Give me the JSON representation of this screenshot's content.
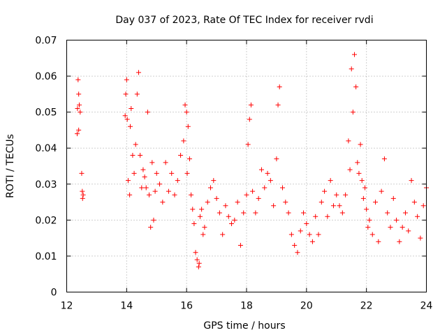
{
  "chart_data": {
    "type": "scatter",
    "title": "Day 037 of 2023, Rate Of TEC Index for receiver rvdi",
    "xlabel": "GPS time / hours",
    "ylabel": "ROTI / TECUs",
    "xlim": [
      12,
      24
    ],
    "ylim": [
      0,
      0.07
    ],
    "xticks": [
      "12",
      "14",
      "16",
      "18",
      "20",
      "22",
      "24"
    ],
    "yticks": [
      "0",
      "0.01",
      "0.02",
      "0.03",
      "0.04",
      "0.05",
      "0.06",
      "0.07"
    ],
    "grid": true,
    "marker": "+",
    "color": "#ff0000",
    "series": [
      {
        "name": "ROTI",
        "x": [
          12.35,
          12.36,
          12.38,
          12.4,
          12.4,
          12.42,
          12.45,
          12.5,
          12.52,
          12.53,
          12.55,
          13.95,
          13.97,
          14.0,
          14.02,
          14.05,
          14.1,
          14.12,
          14.15,
          14.2,
          14.25,
          14.3,
          14.35,
          14.4,
          14.45,
          14.5,
          14.55,
          14.6,
          14.65,
          14.7,
          14.75,
          14.8,
          14.85,
          14.9,
          14.95,
          15.0,
          15.1,
          15.2,
          15.3,
          15.4,
          15.5,
          15.6,
          15.7,
          15.8,
          15.9,
          15.95,
          16.0,
          16.02,
          16.05,
          16.1,
          16.15,
          16.2,
          16.25,
          16.3,
          16.35,
          16.4,
          16.42,
          16.45,
          16.5,
          16.55,
          16.6,
          16.7,
          16.8,
          16.9,
          17.0,
          17.1,
          17.2,
          17.3,
          17.4,
          17.5,
          17.6,
          17.7,
          17.8,
          17.9,
          18.0,
          18.05,
          18.1,
          18.15,
          18.2,
          18.3,
          18.4,
          18.5,
          18.6,
          18.7,
          18.8,
          18.9,
          19.0,
          19.05,
          19.1,
          19.2,
          19.3,
          19.4,
          19.5,
          19.6,
          19.7,
          19.8,
          19.9,
          20.0,
          20.1,
          20.2,
          20.3,
          20.4,
          20.5,
          20.6,
          20.7,
          20.8,
          20.9,
          21.0,
          21.1,
          21.2,
          21.3,
          21.4,
          21.45,
          21.5,
          21.55,
          21.6,
          21.65,
          21.7,
          21.75,
          21.8,
          21.85,
          21.9,
          21.95,
          22.0,
          22.05,
          22.1,
          22.2,
          22.3,
          22.4,
          22.5,
          22.6,
          22.7,
          22.8,
          22.9,
          23.0,
          23.1,
          23.2,
          23.3,
          23.4,
          23.5,
          23.6,
          23.7,
          23.8,
          23.9,
          24.0
        ],
        "y": [
          0.044,
          0.051,
          0.059,
          0.055,
          0.045,
          0.052,
          0.05,
          0.033,
          0.028,
          0.026,
          0.027,
          0.049,
          0.055,
          0.059,
          0.048,
          0.031,
          0.027,
          0.046,
          0.051,
          0.038,
          0.033,
          0.041,
          0.055,
          0.061,
          0.038,
          0.029,
          0.034,
          0.032,
          0.029,
          0.05,
          0.027,
          0.018,
          0.036,
          0.02,
          0.028,
          0.033,
          0.03,
          0.025,
          0.036,
          0.028,
          0.033,
          0.027,
          0.031,
          0.038,
          0.042,
          0.052,
          0.05,
          0.033,
          0.046,
          0.037,
          0.027,
          0.023,
          0.019,
          0.011,
          0.009,
          0.007,
          0.008,
          0.021,
          0.023,
          0.016,
          0.018,
          0.025,
          0.029,
          0.031,
          0.026,
          0.022,
          0.016,
          0.024,
          0.021,
          0.019,
          0.02,
          0.025,
          0.013,
          0.022,
          0.027,
          0.041,
          0.048,
          0.052,
          0.028,
          0.022,
          0.026,
          0.034,
          0.029,
          0.033,
          0.031,
          0.024,
          0.037,
          0.052,
          0.057,
          0.029,
          0.025,
          0.022,
          0.016,
          0.013,
          0.011,
          0.017,
          0.022,
          0.019,
          0.016,
          0.014,
          0.021,
          0.016,
          0.025,
          0.028,
          0.021,
          0.031,
          0.024,
          0.027,
          0.024,
          0.022,
          0.027,
          0.042,
          0.034,
          0.062,
          0.05,
          0.066,
          0.057,
          0.036,
          0.033,
          0.041,
          0.031,
          0.026,
          0.029,
          0.023,
          0.018,
          0.02,
          0.016,
          0.025,
          0.014,
          0.028,
          0.037,
          0.022,
          0.018,
          0.026,
          0.02,
          0.014,
          0.018,
          0.022,
          0.017,
          0.031,
          0.025,
          0.021,
          0.015,
          0.024,
          0.029
        ]
      }
    ]
  }
}
